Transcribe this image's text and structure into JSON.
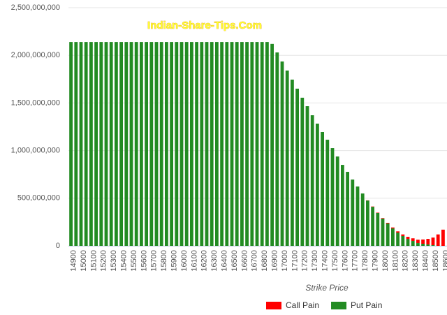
{
  "chart_data": {
    "type": "stacked-bar",
    "watermark": "Indian-Share-Tips.Com",
    "x_label": "Strike Price",
    "categories": [
      "14900",
      null,
      "15000",
      null,
      "15100",
      null,
      "15200",
      null,
      "15300",
      null,
      "15400",
      null,
      "15500",
      null,
      "15600",
      null,
      "15700",
      null,
      "15800",
      null,
      "15900",
      null,
      "16000",
      null,
      "16100",
      null,
      "16200",
      null,
      "16300",
      null,
      "16400",
      null,
      "16500",
      null,
      "16600",
      null,
      "16700",
      null,
      "16800",
      null,
      "16900",
      null,
      "17000",
      null,
      "17100",
      null,
      "17200",
      null,
      "17300",
      null,
      "17400",
      null,
      "17500",
      null,
      "17600",
      null,
      "17700",
      null,
      "17800",
      null,
      "17900",
      null,
      "18000",
      null,
      "18100",
      null,
      "18200",
      null,
      "18300",
      null,
      "18400",
      null,
      "18500",
      null,
      "18600"
    ],
    "series": [
      {
        "name": "Call Pain",
        "color": "#ff0000",
        "values": [
          0,
          0,
          0,
          0,
          0,
          0,
          0,
          0,
          0,
          0,
          0,
          0,
          0,
          0,
          0,
          0,
          0,
          0,
          0,
          0,
          0,
          0,
          0,
          0,
          0,
          0,
          0,
          0,
          0,
          0,
          0,
          0,
          0,
          0,
          0,
          0,
          0,
          0,
          0,
          0,
          0,
          0,
          0,
          0,
          0,
          0,
          0,
          0,
          0,
          0,
          0,
          0,
          0,
          0,
          0,
          0,
          0,
          0,
          0,
          2000000,
          3000000,
          4000000,
          5000000,
          7000000,
          10000000,
          13000000,
          17000000,
          22000000,
          28000000,
          36000000,
          45000000,
          58000000,
          80000000,
          120000000,
          170000000
        ]
      },
      {
        "name": "Put Pain",
        "color": "#228b22",
        "values": [
          2140000000,
          2140000000,
          2140000000,
          2140000000,
          2140000000,
          2140000000,
          2140000000,
          2140000000,
          2140000000,
          2140000000,
          2140000000,
          2140000000,
          2140000000,
          2140000000,
          2140000000,
          2140000000,
          2140000000,
          2140000000,
          2140000000,
          2140000000,
          2140000000,
          2140000000,
          2140000000,
          2140000000,
          2140000000,
          2140000000,
          2140000000,
          2140000000,
          2140000000,
          2140000000,
          2140000000,
          2140000000,
          2140000000,
          2140000000,
          2140000000,
          2140000000,
          2140000000,
          2140000000,
          2140000000,
          2140000000,
          2120000000,
          2030000000,
          1935000000,
          1840000000,
          1745000000,
          1650000000,
          1555000000,
          1466000000,
          1371000000,
          1283000000,
          1195000000,
          1114000000,
          1026000000,
          938000000,
          850000000,
          777000000,
          696000000,
          623000000,
          550000000,
          476000000,
          410000000,
          345000000,
          286000000,
          235000000,
          183000000,
          139000000,
          103000000,
          73000000,
          51000000,
          29000000,
          22000000,
          15000000,
          7000000,
          0,
          0
        ]
      }
    ],
    "ylim": [
      0,
      2500000000
    ],
    "yticks": [
      0,
      {
        "value": 500000000,
        "label": "500,000,000"
      },
      {
        "value": 1000000000,
        "label": "1,000,000,000"
      },
      {
        "value": 1500000000,
        "label": "1,500,000,000"
      },
      {
        "value": 2000000000,
        "label": "2,000,000,000"
      },
      {
        "value": 2500000000,
        "label": "2,500,000,000"
      }
    ],
    "grid": true
  }
}
